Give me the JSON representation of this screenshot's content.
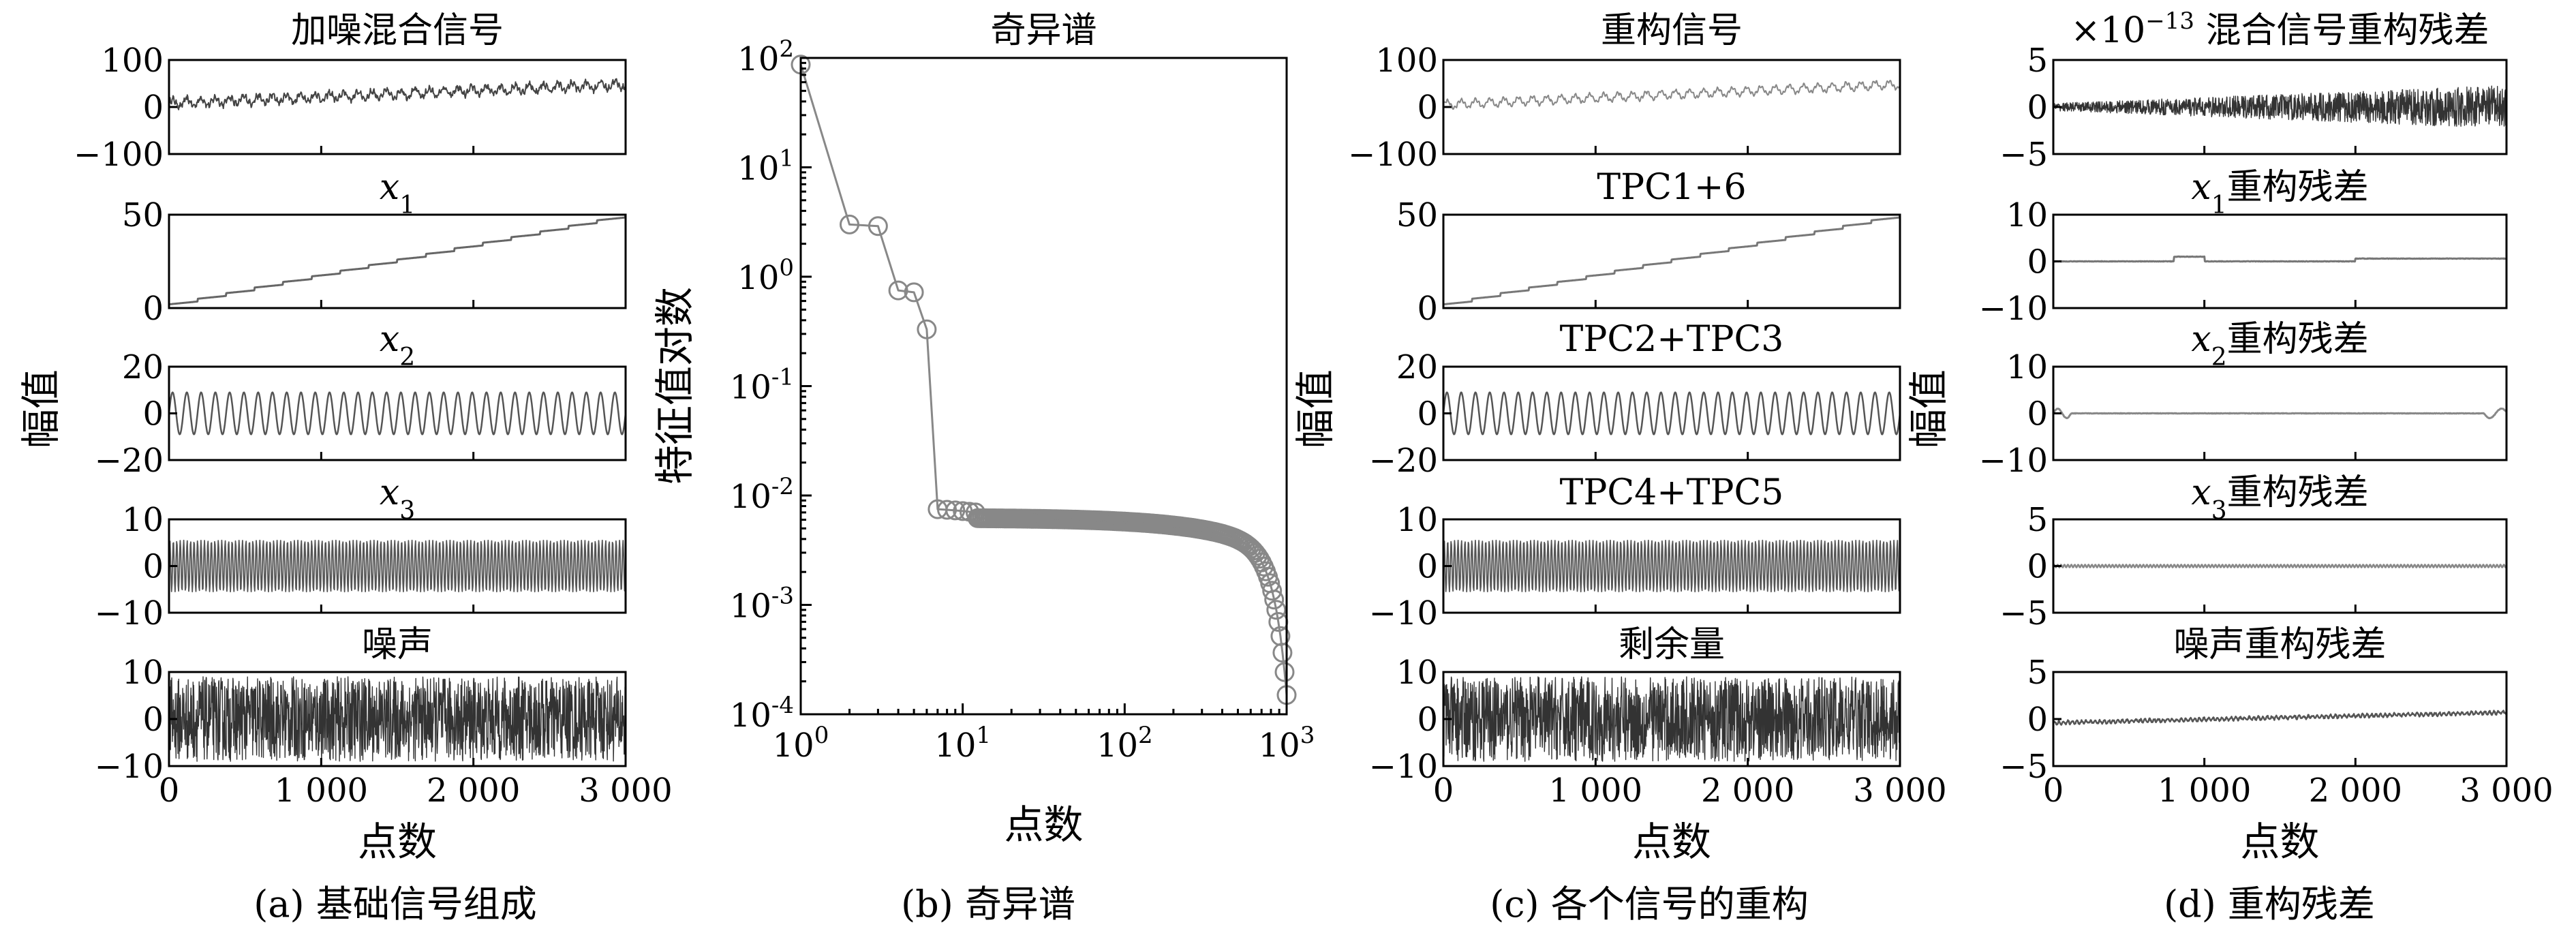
{
  "figure": {
    "panel_a_caption": "(a) 基础信号组成",
    "panel_b_caption": "(b) 奇异谱",
    "panel_c_caption": "(c) 各个信号的重构",
    "panel_d_caption": "(d) 重构残差",
    "ylabel_amplitude": "幅值",
    "xlabel_points": "点数"
  },
  "chart_data": [
    {
      "id": "a",
      "type": "line",
      "xlim": [
        0,
        3000
      ],
      "xticks": [
        0,
        1000,
        2000,
        3000
      ],
      "xtick_labels": [
        "0",
        "1 000",
        "2 000",
        "3 000"
      ],
      "xlabel": "点数",
      "ylabel": "幅值",
      "subplots": [
        {
          "title_main": "加噪混合信号",
          "title_sub": "",
          "title_rest": "",
          "ylim": [
            -100,
            100
          ],
          "yticks": [
            -100,
            0,
            100
          ],
          "ytick_labels": [
            "−100",
            "0",
            "100"
          ],
          "trend": [
            8,
            48
          ],
          "components": [
            {
              "amp": 8,
              "cycles": 32
            },
            {
              "amp": 4,
              "cycles": 132
            }
          ],
          "noise": 5,
          "color": "#444444",
          "stroke": 2
        },
        {
          "title_main": "x",
          "title_sub": "1",
          "title_rest": "",
          "ylim": [
            0,
            50
          ],
          "yticks": [
            0,
            50
          ],
          "ytick_labels": [
            "0",
            "50"
          ],
          "trend": [
            2,
            50
          ],
          "components": [],
          "noise": 0,
          "steps": 16,
          "color": "#666666",
          "stroke": 3
        },
        {
          "title_main": "x",
          "title_sub": "2",
          "title_rest": "",
          "ylim": [
            -20,
            20
          ],
          "yticks": [
            -20,
            0,
            20
          ],
          "ytick_labels": [
            "−20",
            "0",
            "20"
          ],
          "trend": [
            0,
            0
          ],
          "components": [
            {
              "amp": 9,
              "cycles": 32
            }
          ],
          "noise": 0,
          "color": "#555555",
          "stroke": 2.5
        },
        {
          "title_main": "x",
          "title_sub": "3",
          "title_rest": "",
          "ylim": [
            -10,
            10
          ],
          "yticks": [
            -10,
            0,
            10
          ],
          "ytick_labels": [
            "−10",
            "0",
            "10"
          ],
          "trend": [
            0,
            0
          ],
          "components": [
            {
              "amp": 5.5,
              "cycles": 132
            }
          ],
          "noise": 0,
          "color": "#555555",
          "stroke": 1.8
        },
        {
          "title_main": "噪声",
          "title_sub": "",
          "title_rest": "",
          "ylim": [
            -10,
            10
          ],
          "yticks": [
            -10,
            0,
            10
          ],
          "ytick_labels": [
            "−10",
            "0",
            "10"
          ],
          "trend": [
            0,
            0
          ],
          "components": [],
          "noise": 9,
          "color": "#333333",
          "stroke": 1.4,
          "dense": true
        }
      ]
    },
    {
      "id": "b",
      "type": "scatter",
      "scale": "log-log",
      "title": "奇异谱",
      "xlabel": "点数",
      "ylabel": "特征值对数",
      "xlim_exp": [
        0,
        3
      ],
      "ylim_exp": [
        -4,
        2
      ],
      "x_base_label": "10",
      "xtick_exps": [
        "0",
        "1",
        "2",
        "3"
      ],
      "ytick_exps": [
        "2",
        "1",
        "0",
        "-1",
        "-2",
        "-3",
        "-4"
      ],
      "leading_points": [
        [
          1,
          87
        ],
        [
          2,
          3.0
        ],
        [
          3,
          2.9
        ],
        [
          4,
          0.75
        ],
        [
          5,
          0.72
        ],
        [
          6,
          0.33
        ],
        [
          7,
          0.0075
        ],
        [
          8,
          0.0074
        ],
        [
          9,
          0.0073
        ],
        [
          10,
          0.0072
        ],
        [
          11,
          0.0071
        ],
        [
          12,
          0.007
        ]
      ],
      "tail": {
        "from_x": 12,
        "to_x": 1000,
        "start_value": 0.0062,
        "end_value": 0.00015
      },
      "marker": "circle-open",
      "color": "#888888"
    },
    {
      "id": "c",
      "type": "line",
      "xlim": [
        0,
        3000
      ],
      "xticks": [
        0,
        1000,
        2000,
        3000
      ],
      "xtick_labels": [
        "0",
        "1 000",
        "2 000",
        "3 000"
      ],
      "xlabel": "点数",
      "ylabel": "幅值",
      "subplots": [
        {
          "title_main": "重构信号",
          "title_sub": "",
          "title_rest": "",
          "ylim": [
            -100,
            100
          ],
          "yticks": [
            -100,
            0,
            100
          ],
          "ytick_labels": [
            "−100",
            "0",
            "100"
          ],
          "trend": [
            5,
            48
          ],
          "components": [
            {
              "amp": 8,
              "cycles": 32
            },
            {
              "amp": 3,
              "cycles": 132
            }
          ],
          "noise": 1.5,
          "color": "#888888",
          "stroke": 2
        },
        {
          "title_main": "TPC1+6",
          "title_sub": "",
          "title_rest": "",
          "ylim": [
            0,
            50
          ],
          "yticks": [
            0,
            50
          ],
          "ytick_labels": [
            "0",
            "50"
          ],
          "trend": [
            2,
            50
          ],
          "components": [],
          "noise": 0,
          "steps": 16,
          "color": "#777777",
          "stroke": 3
        },
        {
          "title_main": "TPC2+TPC3",
          "title_sub": "",
          "title_rest": "",
          "ylim": [
            -20,
            20
          ],
          "yticks": [
            -20,
            0,
            20
          ],
          "ytick_labels": [
            "−20",
            "0",
            "20"
          ],
          "trend": [
            0,
            0
          ],
          "components": [
            {
              "amp": 9,
              "cycles": 32
            }
          ],
          "noise": 0,
          "color": "#555555",
          "stroke": 2.5
        },
        {
          "title_main": "TPC4+TPC5",
          "title_sub": "",
          "title_rest": "",
          "ylim": [
            -10,
            10
          ],
          "yticks": [
            -10,
            0,
            10
          ],
          "ytick_labels": [
            "−10",
            "0",
            "10"
          ],
          "trend": [
            0,
            0
          ],
          "components": [
            {
              "amp": 5.5,
              "cycles": 132
            }
          ],
          "noise": 0,
          "color": "#555555",
          "stroke": 1.8
        },
        {
          "title_main": "剩余量",
          "title_sub": "",
          "title_rest": "",
          "ylim": [
            -10,
            10
          ],
          "yticks": [
            -10,
            0,
            10
          ],
          "ytick_labels": [
            "−10",
            "0",
            "10"
          ],
          "trend": [
            0,
            0
          ],
          "components": [],
          "noise": 9,
          "color": "#333333",
          "stroke": 1.4,
          "dense": true
        }
      ]
    },
    {
      "id": "d",
      "type": "line",
      "xlim": [
        0,
        3000
      ],
      "xticks": [
        0,
        1000,
        2000,
        3000
      ],
      "xtick_labels": [
        "0",
        "1 000",
        "2 000",
        "3 000"
      ],
      "xlabel": "点数",
      "ylabel": "幅值",
      "subplots": [
        {
          "title_main": "×10",
          "title_sup": "−13",
          "title_sub": "",
          "title_rest": " 混合信号重构残差",
          "ylim": [
            -5,
            5
          ],
          "yticks": [
            -5,
            0,
            5
          ],
          "ytick_labels": [
            "−5",
            "0",
            "5"
          ],
          "trend": [
            0,
            0
          ],
          "components": [],
          "noise": 0.4,
          "noise_end": 2.3,
          "color": "#333333",
          "stroke": 1.4,
          "dense": true
        },
        {
          "title_main": "x",
          "title_sub": "1",
          "title_rest": "重构残差",
          "ylim": [
            -10,
            10
          ],
          "yticks": [
            -10,
            0,
            10
          ],
          "ytick_labels": [
            "−10",
            "0",
            "10"
          ],
          "trend": [
            0,
            0
          ],
          "components": [],
          "noise": 0.05,
          "bumps": [
            [
              800,
              1000,
              1.0
            ],
            [
              2000,
              3000,
              0.6
            ]
          ],
          "color": "#777777",
          "stroke": 3
        },
        {
          "title_main": "x",
          "title_sub": "2",
          "title_rest": "重构残差",
          "ylim": [
            -10,
            10
          ],
          "yticks": [
            -10,
            0,
            10
          ],
          "ytick_labels": [
            "−10",
            "0",
            "10"
          ],
          "trend": [
            0,
            0
          ],
          "components": [],
          "noise": 0.05,
          "edge_wiggle": 1.0,
          "color": "#888888",
          "stroke": 3
        },
        {
          "title_main": "x",
          "title_sub": "3",
          "title_rest": "重构残差",
          "ylim": [
            -5,
            5
          ],
          "yticks": [
            -5,
            0,
            5
          ],
          "ytick_labels": [
            "−5",
            "0",
            "5"
          ],
          "trend": [
            0,
            0
          ],
          "components": [
            {
              "amp": 0.15,
              "cycles": 132
            }
          ],
          "noise": 0,
          "color": "#888888",
          "stroke": 2.5
        },
        {
          "title_main": "噪声重构残差",
          "title_sub": "",
          "title_rest": "",
          "ylim": [
            -5,
            5
          ],
          "yticks": [
            -5,
            0,
            5
          ],
          "ytick_labels": [
            "−5",
            "0",
            "5"
          ],
          "trend": [
            -0.4,
            0.7
          ],
          "components": [
            {
              "amp": 0.15,
              "cycles": 100
            }
          ],
          "noise": 0.1,
          "color": "#555555",
          "stroke": 2.5
        }
      ]
    }
  ]
}
